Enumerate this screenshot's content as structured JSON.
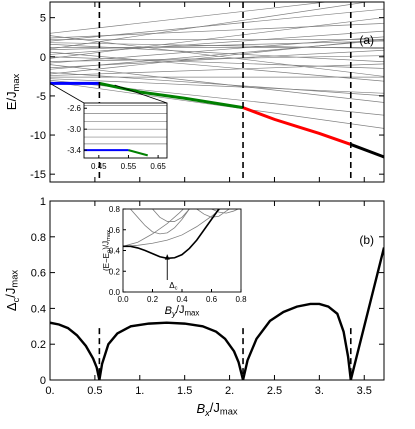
{
  "chart_data": [
    {
      "type": "line",
      "panel_label": "(a)",
      "ylabel": "E/J",
      "ylabel_sub": "max",
      "xlim": [
        0,
        3.72
      ],
      "ylim": [
        -16,
        7
      ],
      "grid": false,
      "yticks": [
        {
          "value": 5,
          "label": "5"
        },
        {
          "value": 0,
          "label": "0"
        },
        {
          "value": -5,
          "label": "-5"
        },
        {
          "value": -10,
          "label": "-10"
        },
        {
          "value": -15,
          "label": "-15"
        }
      ],
      "xticks": [
        0,
        0.5,
        1,
        1.5,
        2,
        2.5,
        3,
        3.5
      ],
      "transitions": [
        0.55,
        2.15,
        3.35
      ],
      "ground_state_segments": [
        {
          "color": "#0000ff",
          "points": [
            [
              0,
              -3.4
            ],
            [
              0.55,
              -3.4
            ]
          ]
        },
        {
          "color": "#008000",
          "points": [
            [
              0.55,
              -3.4
            ],
            [
              1.0,
              -4.5
            ],
            [
              1.5,
              -5.3
            ],
            [
              2.15,
              -6.5
            ]
          ]
        },
        {
          "color": "#ff0000",
          "points": [
            [
              2.15,
              -6.5
            ],
            [
              2.5,
              -8.0
            ],
            [
              3.0,
              -9.8
            ],
            [
              3.35,
              -11.2
            ]
          ]
        },
        {
          "color": "#000000",
          "points": [
            [
              3.35,
              -11.2
            ],
            [
              3.72,
              -12.8
            ]
          ]
        }
      ],
      "excited_levels": [
        {
          "y0": -3.2,
          "slope": -1.6
        },
        {
          "y0": -3.0,
          "slope": -1.2
        },
        {
          "y0": -2.8,
          "slope": -0.5
        },
        {
          "y0": -2.6,
          "slope": 0.0
        },
        {
          "y0": -2.4,
          "slope": 0.4
        },
        {
          "y0": -2.0,
          "slope": -0.8
        },
        {
          "y0": -1.6,
          "slope": 1.0
        },
        {
          "y0": -1.0,
          "slope": -1.3
        },
        {
          "y0": -0.6,
          "slope": 0.2
        },
        {
          "y0": -0.2,
          "slope": 1.4
        },
        {
          "y0": 0.0,
          "slope": -0.4
        },
        {
          "y0": 0.3,
          "slope": 0.8
        },
        {
          "y0": 0.6,
          "slope": -1.0
        },
        {
          "y0": 1.0,
          "slope": 1.7
        },
        {
          "y0": 1.2,
          "slope": 0.0
        },
        {
          "y0": 1.6,
          "slope": -0.6
        },
        {
          "y0": 2.0,
          "slope": 1.1
        },
        {
          "y0": 2.4,
          "slope": 0.5
        },
        {
          "y0": 2.7,
          "slope": -1.4
        },
        {
          "y0": 3.0,
          "slope": 1.3
        },
        {
          "y0": -1.4,
          "slope": 0.6
        },
        {
          "y0": -0.8,
          "slope": 0.9
        },
        {
          "y0": 0.9,
          "slope": 0.3
        },
        {
          "y0": 1.8,
          "slope": -0.2
        },
        {
          "y0": -2.2,
          "slope": 1.2
        },
        {
          "y0": 2.2,
          "slope": 0.0
        }
      ],
      "inset": {
        "xlim": [
          0.4,
          0.68
        ],
        "ylim": [
          -3.55,
          -2.5
        ],
        "xticks": [
          {
            "value": 0.45,
            "label": "0.45"
          },
          {
            "value": 0.55,
            "label": "0.55"
          },
          {
            "value": 0.65,
            "label": "0.65"
          }
        ],
        "yticks": [
          {
            "value": -2.6,
            "label": "-2.6"
          },
          {
            "value": -3.0,
            "label": "-3.0"
          },
          {
            "value": -3.4,
            "label": "-3.4"
          }
        ],
        "ground_blue": [
          [
            0.4,
            -3.4
          ],
          [
            0.55,
            -3.4
          ]
        ],
        "ground_green": [
          [
            0.55,
            -3.4
          ],
          [
            0.615,
            -3.5
          ]
        ],
        "levels": [
          -2.55,
          -2.7,
          -2.85,
          -3.0,
          -3.15,
          -3.28
        ]
      }
    },
    {
      "type": "line",
      "panel_label": "(b)",
      "ylabel": "Δ",
      "ylabel_sub_c": "c",
      "ylabel_rest": "/J",
      "ylabel_sub": "max",
      "xlabel": "B",
      "xlabel_sub": "x",
      "xlabel_rest": "/J",
      "xlabel_sub2": "max",
      "xlim": [
        0,
        3.72
      ],
      "ylim": [
        0,
        1.0
      ],
      "grid": false,
      "yticks": [
        {
          "value": 0,
          "label": "0"
        },
        {
          "value": 0.2,
          "label": "0.2"
        },
        {
          "value": 0.4,
          "label": "0.4"
        },
        {
          "value": 0.6,
          "label": "0.6"
        },
        {
          "value": 0.8,
          "label": "0.8"
        },
        {
          "value": 1.0,
          "label": "1"
        }
      ],
      "xticks": [
        {
          "value": 0,
          "label": "0."
        },
        {
          "value": 0.5,
          "label": "0.5"
        },
        {
          "value": 1,
          "label": "1."
        },
        {
          "value": 1.5,
          "label": "1.5"
        },
        {
          "value": 2,
          "label": "2."
        },
        {
          "value": 2.5,
          "label": "2.5"
        },
        {
          "value": 3,
          "label": "3."
        },
        {
          "value": 3.5,
          "label": "3.5"
        }
      ],
      "transitions": [
        0.55,
        2.15,
        3.35
      ],
      "gap_curve": [
        [
          0,
          0.32
        ],
        [
          0.1,
          0.31
        ],
        [
          0.2,
          0.29
        ],
        [
          0.3,
          0.25
        ],
        [
          0.4,
          0.19
        ],
        [
          0.48,
          0.12
        ],
        [
          0.52,
          0.07
        ],
        [
          0.55,
          0.0
        ],
        [
          0.58,
          0.09
        ],
        [
          0.65,
          0.2
        ],
        [
          0.75,
          0.26
        ],
        [
          0.9,
          0.3
        ],
        [
          1.1,
          0.315
        ],
        [
          1.3,
          0.32
        ],
        [
          1.5,
          0.315
        ],
        [
          1.7,
          0.3
        ],
        [
          1.85,
          0.27
        ],
        [
          1.95,
          0.23
        ],
        [
          2.05,
          0.16
        ],
        [
          2.1,
          0.1
        ],
        [
          2.15,
          0.0
        ],
        [
          2.2,
          0.11
        ],
        [
          2.3,
          0.23
        ],
        [
          2.45,
          0.33
        ],
        [
          2.6,
          0.38
        ],
        [
          2.75,
          0.41
        ],
        [
          2.9,
          0.425
        ],
        [
          3.0,
          0.425
        ],
        [
          3.1,
          0.41
        ],
        [
          3.2,
          0.37
        ],
        [
          3.27,
          0.27
        ],
        [
          3.32,
          0.13
        ],
        [
          3.35,
          0.0
        ],
        [
          3.4,
          0.1
        ],
        [
          3.5,
          0.3
        ],
        [
          3.6,
          0.5
        ],
        [
          3.72,
          0.74
        ]
      ],
      "inset": {
        "xlabel": "B",
        "xlabel_sub": "y",
        "xlabel_rest": "/J",
        "xlabel_sub2": "max",
        "ylabel": "(E−E",
        "ylabel_sub": "g",
        "ylabel_rest": ")/J",
        "ylabel_sub2": "max",
        "annotation": "Δ",
        "annotation_sub": "c",
        "xlim": [
          0,
          0.8
        ],
        "ylim": [
          0,
          0.8
        ],
        "xticks": [
          {
            "value": 0,
            "label": "0.0"
          },
          {
            "value": 0.2,
            "label": "0.2"
          },
          {
            "value": 0.4,
            "label": "0.4"
          },
          {
            "value": 0.6,
            "label": "0.6"
          },
          {
            "value": 0.8,
            "label": "0.8"
          }
        ],
        "yticks": [
          {
            "value": 0,
            "label": "0.0"
          },
          {
            "value": 0.2,
            "label": "0.2"
          },
          {
            "value": 0.4,
            "label": "0.4"
          },
          {
            "value": 0.6,
            "label": "0.6"
          },
          {
            "value": 0.8,
            "label": "0.8"
          }
        ],
        "main_curve": [
          [
            0,
            0.44
          ],
          [
            0.05,
            0.44
          ],
          [
            0.1,
            0.425
          ],
          [
            0.15,
            0.4
          ],
          [
            0.2,
            0.37
          ],
          [
            0.25,
            0.34
          ],
          [
            0.3,
            0.325
          ],
          [
            0.35,
            0.33
          ],
          [
            0.4,
            0.36
          ],
          [
            0.45,
            0.42
          ],
          [
            0.5,
            0.5
          ],
          [
            0.55,
            0.6
          ],
          [
            0.6,
            0.7
          ],
          [
            0.65,
            0.8
          ]
        ],
        "other_curves": [
          [
            [
              0,
              0.44
            ],
            [
              0.1,
              0.48
            ],
            [
              0.2,
              0.56
            ],
            [
              0.3,
              0.66
            ],
            [
              0.38,
              0.76
            ],
            [
              0.41,
              0.8
            ]
          ],
          [
            [
              0,
              0.44
            ],
            [
              0.1,
              0.45
            ],
            [
              0.2,
              0.47
            ],
            [
              0.3,
              0.5
            ],
            [
              0.4,
              0.55
            ],
            [
              0.5,
              0.63
            ],
            [
              0.6,
              0.73
            ],
            [
              0.66,
              0.8
            ]
          ],
          [
            [
              0.05,
              0.8
            ],
            [
              0.1,
              0.72
            ],
            [
              0.15,
              0.64
            ],
            [
              0.2,
              0.58
            ],
            [
              0.25,
              0.56
            ],
            [
              0.3,
              0.57
            ],
            [
              0.35,
              0.62
            ],
            [
              0.4,
              0.7
            ],
            [
              0.45,
              0.8
            ]
          ],
          [
            [
              0.2,
              0.8
            ],
            [
              0.25,
              0.72
            ],
            [
              0.3,
              0.68
            ],
            [
              0.35,
              0.68
            ],
            [
              0.4,
              0.72
            ],
            [
              0.45,
              0.8
            ]
          ],
          [
            [
              0.5,
              0.8
            ],
            [
              0.55,
              0.75
            ],
            [
              0.6,
              0.72
            ],
            [
              0.65,
              0.73
            ],
            [
              0.7,
              0.78
            ],
            [
              0.72,
              0.8
            ]
          ],
          [
            [
              0.6,
              0.8
            ],
            [
              0.65,
              0.77
            ],
            [
              0.7,
              0.76
            ],
            [
              0.75,
              0.78
            ],
            [
              0.78,
              0.8
            ]
          ]
        ],
        "arrow_x": 0.3,
        "arrow_y_top": 0.36
      }
    }
  ]
}
